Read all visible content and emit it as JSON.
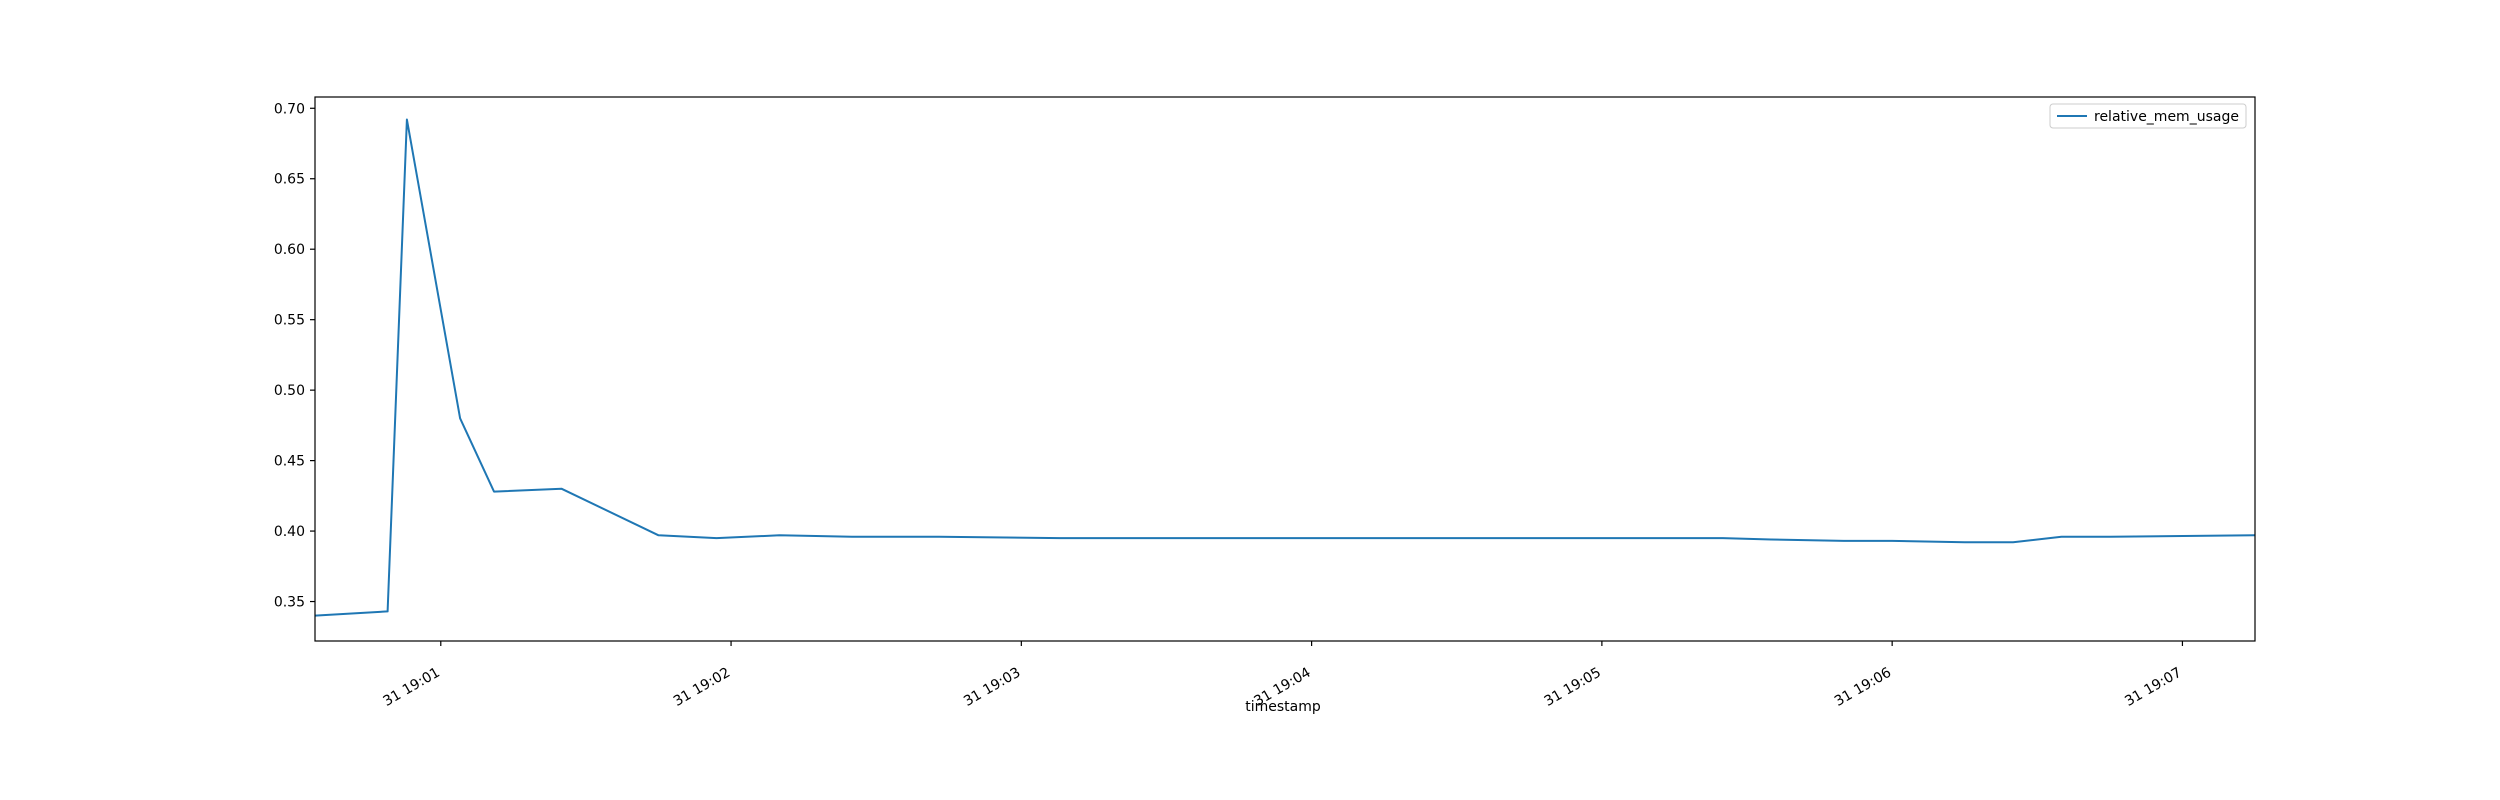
{
  "chart_data": {
    "type": "line",
    "xlabel": "timestamp",
    "ylabel": "",
    "x_tick_labels": [
      "31 19:01",
      "31 19:02",
      "31 19:03",
      "31 19:04",
      "31 19:05",
      "31 19:06",
      "31 19:07"
    ],
    "y_tick_labels": [
      "0.35",
      "0.40",
      "0.45",
      "0.50",
      "0.55",
      "0.60",
      "0.65",
      "0.70"
    ],
    "xlim": [
      "19:00:34",
      "19:07:15"
    ],
    "ylim": [
      0.322,
      0.708
    ],
    "grid": false,
    "legend": "top-right",
    "series": [
      {
        "name": "relative_mem_usage",
        "color": "#1f77b4",
        "x": [
          "19:00:34",
          "19:00:49",
          "19:00:53",
          "19:01:04",
          "19:01:11",
          "19:01:25",
          "19:01:45",
          "19:01:57",
          "19:02:10",
          "19:02:25",
          "19:02:43",
          "19:03:08",
          "19:03:33",
          "19:04:00",
          "19:04:40",
          "19:05:25",
          "19:05:35",
          "19:05:50",
          "19:06:00",
          "19:06:15",
          "19:06:25",
          "19:06:35",
          "19:06:45",
          "19:07:15"
        ],
        "values": [
          0.34,
          0.343,
          0.692,
          0.48,
          0.428,
          0.43,
          0.397,
          0.395,
          0.397,
          0.396,
          0.396,
          0.395,
          0.395,
          0.395,
          0.395,
          0.395,
          0.394,
          0.393,
          0.393,
          0.392,
          0.392,
          0.396,
          0.396,
          0.397
        ]
      }
    ]
  }
}
